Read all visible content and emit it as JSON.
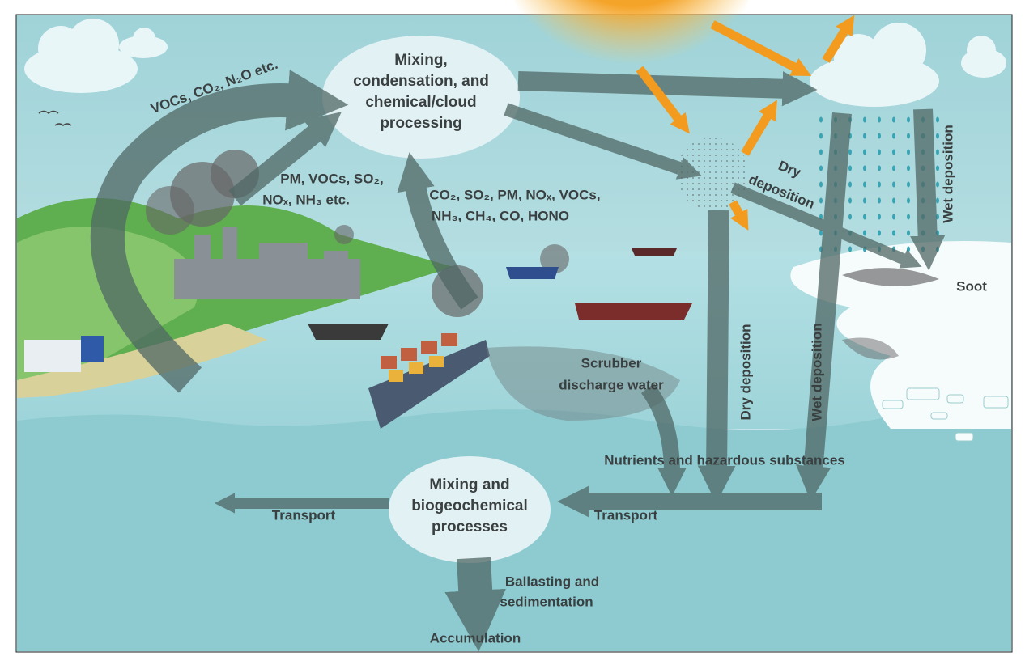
{
  "nodes": [
    {
      "lines": [
        "Mixing,",
        "condensation, and",
        "chemical/cloud",
        "processing"
      ]
    },
    {
      "lines": [
        "Mixing and",
        "biogeochemical",
        "processes"
      ]
    }
  ],
  "emissions": {
    "land_gases": "VOCs, CO₂, N₂O etc.",
    "industry": [
      "PM, VOCs, SO₂,",
      "NOₓ, NH₃ etc."
    ],
    "shipping": [
      "CO₂, SO₂, PM, NOₓ, VOCs,",
      "NH₃, CH₄, CO, HONO"
    ]
  },
  "flows": {
    "dry_deposition_air": [
      "Dry",
      "deposition"
    ],
    "wet_deposition_air": "Wet deposition",
    "soot": "Soot",
    "dry_deposition_sea": "Dry deposition",
    "wet_deposition_sea": "Wet deposition",
    "scrubber": [
      "Scrubber",
      "discharge water"
    ],
    "nutrients": "Nutrients and hazardous substances",
    "transport_left": "Transport",
    "transport_right": "Transport",
    "ballasting": [
      "Ballasting and",
      "sedimentation"
    ],
    "accumulation": "Accumulation"
  }
}
